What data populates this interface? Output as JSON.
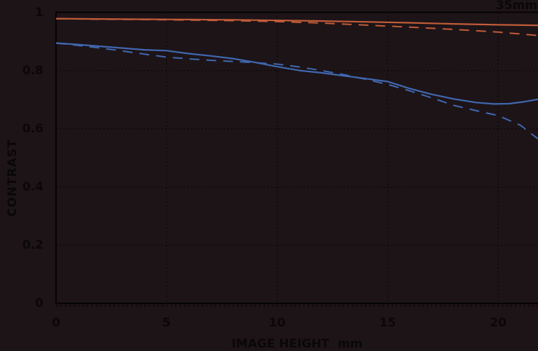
{
  "badge": "35mm",
  "axes": {
    "y_label": "CONTRAST",
    "x_label": "IMAGE HEIGHT  mm"
  },
  "colors": {
    "background": "#1d1418",
    "text": "#0a0708",
    "axis": "#060404",
    "grid": "#0a0607",
    "orange": "#c25c38",
    "blue": "#4068b0"
  },
  "chart_data": {
    "type": "line",
    "title": "35mm",
    "xlabel": "IMAGE HEIGHT mm",
    "ylabel": "CONTRAST",
    "xlim": [
      0,
      21.8
    ],
    "ylim": [
      0,
      1
    ],
    "x_ticks": [
      0,
      5,
      10,
      15,
      20
    ],
    "x_tick_labels": [
      "0",
      "5",
      "10",
      "15",
      "20"
    ],
    "y_ticks": [
      1,
      0.8,
      0.6,
      0.4,
      0.2,
      0
    ],
    "y_tick_labels": [
      "1",
      "0.8",
      "0.6",
      "0.4",
      "0.2",
      "0"
    ],
    "grid": "dotted",
    "legend_position": "none",
    "series": [
      {
        "name": "orange-solid",
        "color": "#c25c38",
        "style": "solid",
        "x": [
          0,
          2,
          4,
          6,
          8,
          10,
          12,
          14,
          16,
          18,
          20,
          21.8
        ],
        "y": [
          0.978,
          0.977,
          0.976,
          0.975,
          0.974,
          0.972,
          0.97,
          0.967,
          0.964,
          0.96,
          0.957,
          0.955
        ]
      },
      {
        "name": "orange-dashed",
        "color": "#c25c38",
        "style": "dashed",
        "x": [
          0,
          2,
          4,
          6,
          8,
          10,
          12,
          14,
          16,
          18,
          20,
          21.8
        ],
        "y": [
          0.978,
          0.976,
          0.975,
          0.973,
          0.971,
          0.968,
          0.963,
          0.956,
          0.949,
          0.941,
          0.932,
          0.92
        ]
      },
      {
        "name": "blue-solid",
        "color": "#4068b0",
        "style": "solid",
        "x": [
          0,
          1,
          2,
          3,
          4,
          5,
          6,
          7,
          8,
          9,
          10,
          11,
          12,
          13,
          14,
          15,
          16,
          17,
          18,
          19,
          19.8,
          20.5,
          21.2,
          21.8
        ],
        "y": [
          0.894,
          0.889,
          0.883,
          0.877,
          0.871,
          0.868,
          0.858,
          0.85,
          0.841,
          0.828,
          0.813,
          0.8,
          0.792,
          0.782,
          0.772,
          0.762,
          0.738,
          0.718,
          0.702,
          0.69,
          0.685,
          0.686,
          0.693,
          0.701
        ]
      },
      {
        "name": "blue-dashed",
        "color": "#4068b0",
        "style": "dashed",
        "x": [
          0,
          1,
          2,
          3,
          4,
          5,
          6,
          7,
          8,
          9,
          10,
          11,
          12,
          13,
          14,
          15,
          16,
          17,
          18,
          19,
          20,
          21,
          21.8
        ],
        "y": [
          0.894,
          0.886,
          0.877,
          0.867,
          0.856,
          0.846,
          0.84,
          0.835,
          0.831,
          0.827,
          0.822,
          0.812,
          0.8,
          0.786,
          0.77,
          0.752,
          0.73,
          0.706,
          0.68,
          0.662,
          0.645,
          0.612,
          0.565
        ]
      }
    ]
  }
}
